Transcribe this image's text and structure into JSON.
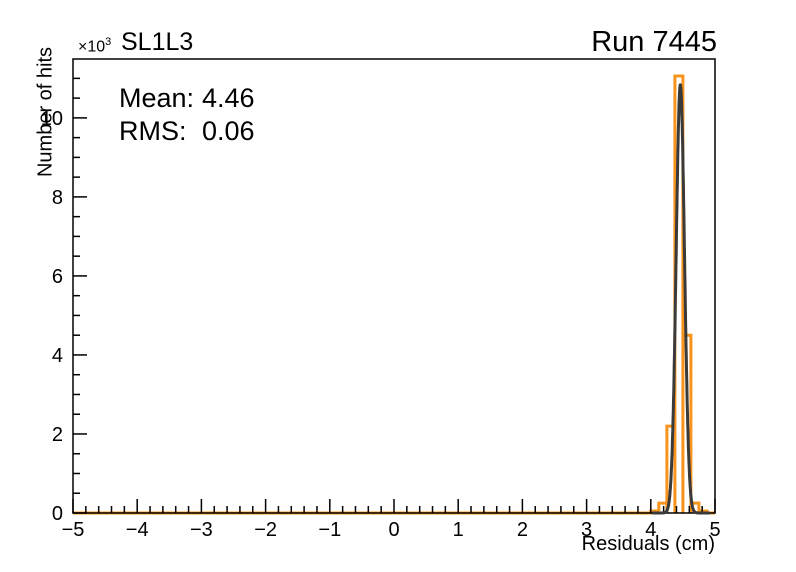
{
  "chart_data": {
    "type": "histogram",
    "title": "SL1L3",
    "run_label": "Run 7445",
    "xlabel": "Residuals (cm)",
    "ylabel": "Number of hits",
    "y_scale_factor": "×10",
    "y_scale_exponent": "3",
    "x_range": [
      -5,
      5
    ],
    "y_range": [
      0,
      11490
    ],
    "x_major_ticks": [
      -5,
      -4,
      -3,
      -2,
      -1,
      0,
      1,
      2,
      3,
      4,
      5
    ],
    "x_minor_step": 0.2,
    "y_major_ticks": [
      0,
      2,
      4,
      6,
      8,
      10
    ],
    "y_major_tick_unit": 1000,
    "y_minor_step": 500,
    "grid": false,
    "legend": null,
    "stats": {
      "mean_label": "Mean:",
      "mean_value": "4.46",
      "rms_label": "RMS:",
      "rms_value": "0.06"
    },
    "series": [
      {
        "name": "residuals-histogram",
        "style": "step",
        "color": "#f7941e",
        "bin_width": 0.125,
        "baseline": 0,
        "bins": [
          {
            "x0": 4.0,
            "x1": 4.125,
            "y": 50
          },
          {
            "x0": 4.125,
            "x1": 4.25,
            "y": 250
          },
          {
            "x0": 4.25,
            "x1": 4.375,
            "y": 2200
          },
          {
            "x0": 4.375,
            "x1": 4.5,
            "y": 11060
          },
          {
            "x0": 4.5,
            "x1": 4.625,
            "y": 4500
          },
          {
            "x0": 4.625,
            "x1": 4.75,
            "y": 250
          },
          {
            "x0": 4.75,
            "x1": 4.875,
            "y": 50
          }
        ]
      },
      {
        "name": "gaussian-fit",
        "style": "curve",
        "color": "#3a3a3a",
        "amplitude": 10840,
        "mean": 4.46,
        "sigma": 0.065,
        "draw_range": [
          4.02,
          4.92
        ]
      }
    ],
    "axis_color": "#000000"
  }
}
